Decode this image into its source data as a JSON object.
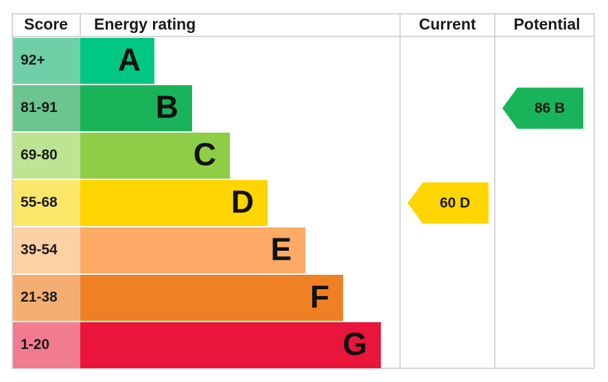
{
  "header": {
    "score": "Score",
    "rating": "Energy rating",
    "current": "Current",
    "potential": "Potential"
  },
  "bands": [
    {
      "score": "92+",
      "letter": "A",
      "color": "#00c781",
      "score_color": "#6fd0a8"
    },
    {
      "score": "81-91",
      "letter": "B",
      "color": "#19b459",
      "score_color": "#6cc48e",
      "potential": "86 B"
    },
    {
      "score": "69-80",
      "letter": "C",
      "color": "#8dce46",
      "score_color": "#bde493"
    },
    {
      "score": "55-68",
      "letter": "D",
      "color": "#ffd500",
      "score_color": "#fde76b",
      "current": "60 D"
    },
    {
      "score": "39-54",
      "letter": "E",
      "color": "#fcaa65",
      "score_color": "#fdd0a6"
    },
    {
      "score": "21-38",
      "letter": "F",
      "color": "#ef8023",
      "score_color": "#f4ae72"
    },
    {
      "score": "1-20",
      "letter": "G",
      "color": "#e9153b",
      "score_color": "#f17b90"
    }
  ]
}
